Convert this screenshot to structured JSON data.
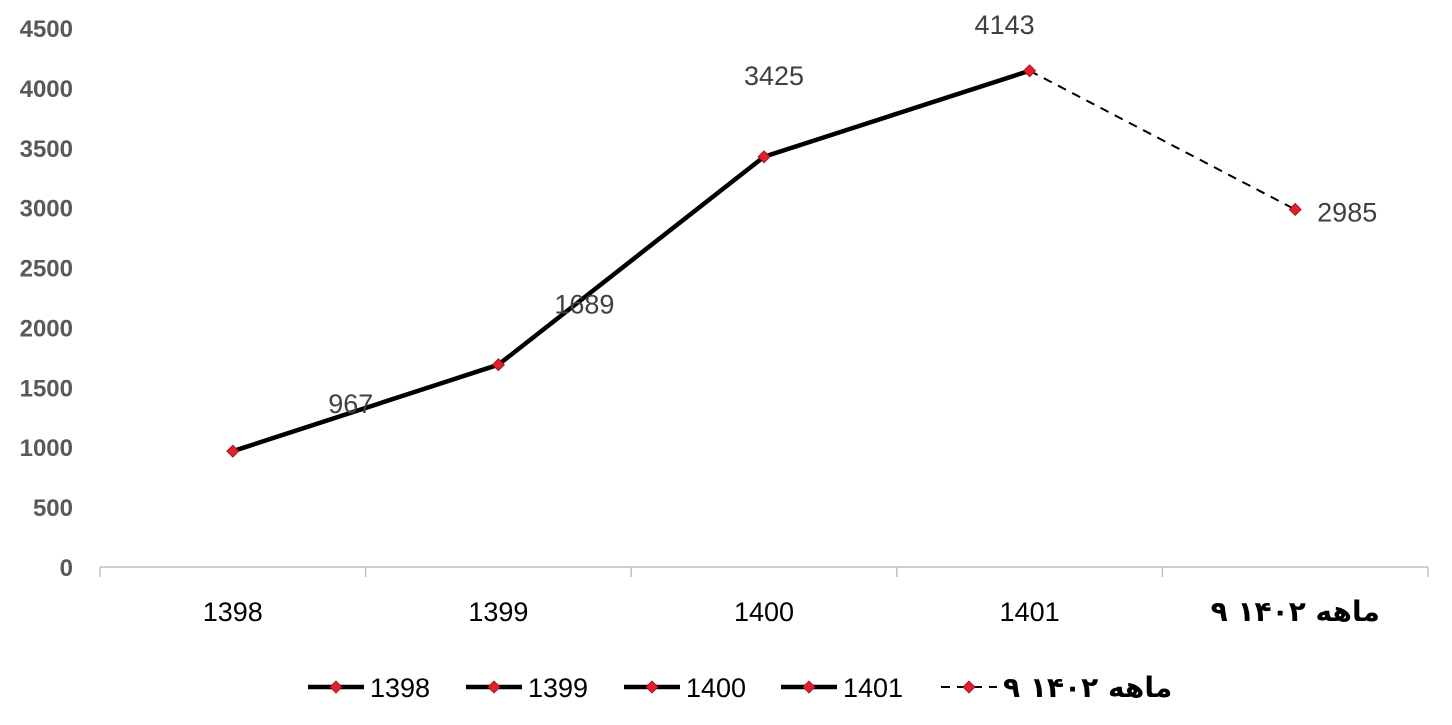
{
  "chart_data": {
    "type": "line",
    "categories": [
      "1398",
      "1399",
      "1400",
      "1401",
      "۹ ماهه ۱۴۰۲"
    ],
    "values": [
      967,
      1689,
      3425,
      4143,
      2985
    ],
    "data_labels": [
      "967",
      "1689",
      "3425",
      "4143",
      "2985"
    ],
    "ylim": [
      0,
      4500
    ],
    "yticks": [
      "0",
      "500",
      "1000",
      "1500",
      "2000",
      "2500",
      "3000",
      "3500",
      "4000",
      "4500"
    ],
    "segment_styles": [
      "solid",
      "solid",
      "solid",
      "dashed"
    ],
    "legend": {
      "position": "bottom",
      "entries": [
        "1398",
        "1399",
        "1400",
        "1401",
        "۹ ماهه ۱۴۰۲"
      ],
      "styles": [
        "solid",
        "solid",
        "solid",
        "solid",
        "dashed"
      ]
    },
    "line_color": "#000000",
    "marker_color": "#e0202a",
    "grid": false
  }
}
